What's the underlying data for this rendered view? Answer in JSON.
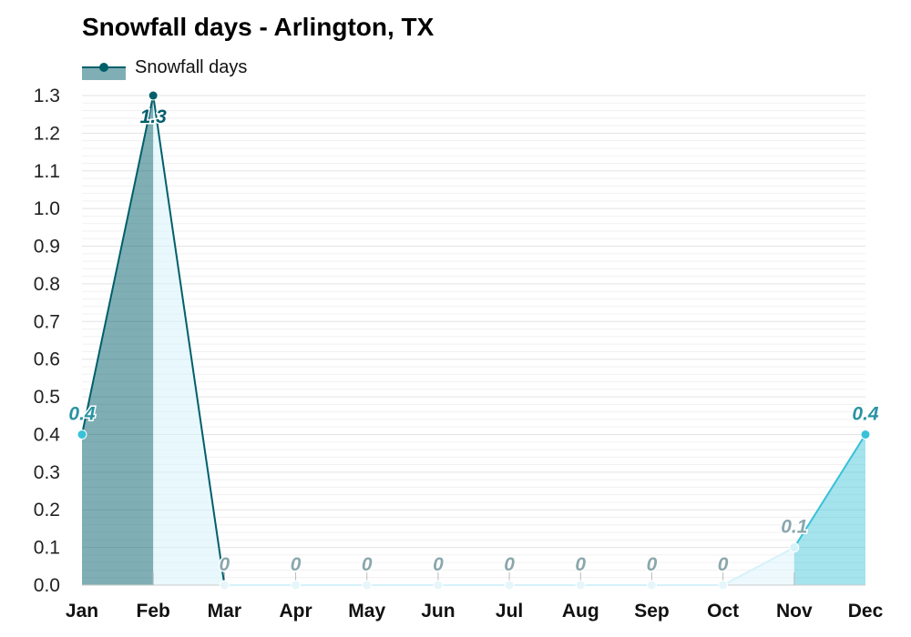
{
  "chart_data": {
    "type": "area",
    "title": "Snowfall days - Arlington, TX",
    "xlabel": "",
    "ylabel": "",
    "categories": [
      "Jan",
      "Feb",
      "Mar",
      "Apr",
      "May",
      "Jun",
      "Jul",
      "Aug",
      "Sep",
      "Oct",
      "Nov",
      "Dec"
    ],
    "series": [
      {
        "name": "Snowfall days",
        "values": [
          0.4,
          1.3,
          0,
          0,
          0,
          0,
          0,
          0,
          0,
          0,
          0.1,
          0.4
        ],
        "data_labels": [
          "0.4",
          "1.3",
          "0",
          "0",
          "0",
          "0",
          "0",
          "0",
          "0",
          "0",
          "0.1",
          "0.4"
        ]
      }
    ],
    "ylim": [
      0,
      1.3
    ],
    "yticks": [
      "0.0",
      "0.1",
      "0.2",
      "0.3",
      "0.4",
      "0.5",
      "0.6",
      "0.7",
      "0.8",
      "0.9",
      "1.0",
      "1.1",
      "1.2",
      "1.3"
    ],
    "grid": true,
    "legend_position": "top-left",
    "colors": {
      "series_line": "#005f6b",
      "high": "#005f6b",
      "mid": "#37c2d8",
      "low": "#d6f2fa",
      "zero_label": "#8aa7ad",
      "grid": "#e3e3e3"
    }
  }
}
